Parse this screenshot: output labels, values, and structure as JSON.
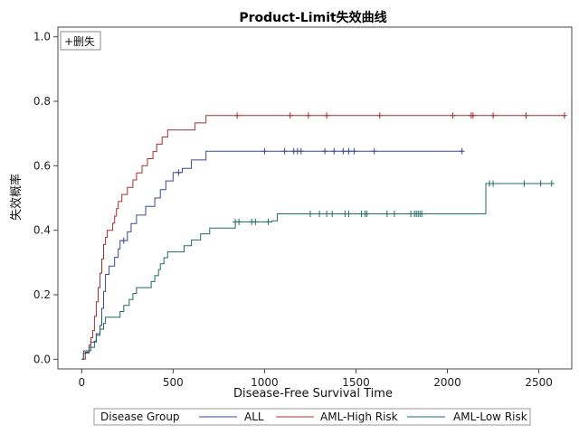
{
  "chart_data": {
    "type": "line",
    "title": "Product-Limit失效曲线",
    "xlabel": "Disease-Free Survival Time",
    "ylabel": "失效概率",
    "xlim": [
      -130,
      2680
    ],
    "ylim": [
      -0.03,
      1.03
    ],
    "xticks": [
      0,
      500,
      1000,
      1500,
      2000,
      2500
    ],
    "yticks": [
      0.0,
      0.2,
      0.4,
      0.6,
      0.8,
      1.0
    ],
    "xtick_labels": [
      "0",
      "500",
      "1000",
      "1500",
      "2000",
      "2500"
    ],
    "ytick_labels": [
      "0.0",
      "0.2",
      "0.4",
      "0.6",
      "0.8",
      "1.0"
    ],
    "inset_legend": {
      "symbol": "+",
      "label": "删失"
    },
    "legend": {
      "title": "Disease Group",
      "placement": "bottom"
    },
    "series": [
      {
        "name": "ALL",
        "color": "#3a4a8c",
        "steps": [
          [
            0,
            0.0
          ],
          [
            10,
            0.026
          ],
          [
            50,
            0.053
          ],
          [
            80,
            0.079
          ],
          [
            100,
            0.105
          ],
          [
            110,
            0.158
          ],
          [
            120,
            0.21
          ],
          [
            130,
            0.263
          ],
          [
            150,
            0.289
          ],
          [
            180,
            0.316
          ],
          [
            200,
            0.342
          ],
          [
            210,
            0.368
          ],
          [
            250,
            0.395
          ],
          [
            270,
            0.421
          ],
          [
            300,
            0.447
          ],
          [
            350,
            0.474
          ],
          [
            400,
            0.5
          ],
          [
            430,
            0.526
          ],
          [
            460,
            0.553
          ],
          [
            500,
            0.579
          ],
          [
            550,
            0.592
          ],
          [
            600,
            0.618
          ],
          [
            680,
            0.645
          ]
        ],
        "end": 2080,
        "censored": [
          230,
          530,
          1000,
          1110,
          1160,
          1180,
          1200,
          1330,
          1380,
          1430,
          1460,
          1490,
          1600,
          2080
        ]
      },
      {
        "name": "AML-High Risk",
        "color": "#a03030",
        "steps": [
          [
            0,
            0.0
          ],
          [
            20,
            0.022
          ],
          [
            40,
            0.044
          ],
          [
            50,
            0.067
          ],
          [
            60,
            0.089
          ],
          [
            70,
            0.133
          ],
          [
            80,
            0.178
          ],
          [
            90,
            0.222
          ],
          [
            100,
            0.267
          ],
          [
            110,
            0.311
          ],
          [
            120,
            0.356
          ],
          [
            130,
            0.378
          ],
          [
            140,
            0.4
          ],
          [
            170,
            0.422
          ],
          [
            180,
            0.444
          ],
          [
            190,
            0.467
          ],
          [
            200,
            0.489
          ],
          [
            220,
            0.511
          ],
          [
            250,
            0.533
          ],
          [
            280,
            0.556
          ],
          [
            300,
            0.578
          ],
          [
            330,
            0.6
          ],
          [
            360,
            0.622
          ],
          [
            390,
            0.644
          ],
          [
            410,
            0.667
          ],
          [
            440,
            0.689
          ],
          [
            470,
            0.711
          ],
          [
            620,
            0.733
          ],
          [
            680,
            0.756
          ]
        ],
        "end": 2640,
        "censored": [
          850,
          1140,
          1240,
          1340,
          1630,
          2030,
          2130,
          2140,
          2250,
          2430,
          2640
        ]
      },
      {
        "name": "AML-Low Risk",
        "color": "#1f6b66",
        "steps": [
          [
            0,
            0.0
          ],
          [
            10,
            0.019
          ],
          [
            40,
            0.037
          ],
          [
            70,
            0.056
          ],
          [
            80,
            0.074
          ],
          [
            100,
            0.093
          ],
          [
            120,
            0.111
          ],
          [
            130,
            0.13
          ],
          [
            210,
            0.148
          ],
          [
            230,
            0.167
          ],
          [
            260,
            0.185
          ],
          [
            280,
            0.204
          ],
          [
            300,
            0.222
          ],
          [
            380,
            0.241
          ],
          [
            400,
            0.259
          ],
          [
            420,
            0.278
          ],
          [
            430,
            0.296
          ],
          [
            450,
            0.315
          ],
          [
            470,
            0.333
          ],
          [
            560,
            0.352
          ],
          [
            600,
            0.37
          ],
          [
            650,
            0.389
          ],
          [
            700,
            0.407
          ],
          [
            840,
            0.426
          ],
          [
            1040,
            0.429
          ],
          [
            1070,
            0.451
          ],
          [
            2210,
            0.545
          ]
        ],
        "end": 2570,
        "censored": [
          840,
          860,
          930,
          950,
          1020,
          1250,
          1300,
          1340,
          1370,
          1440,
          1460,
          1530,
          1550,
          1560,
          1670,
          1710,
          1800,
          1820,
          1830,
          1840,
          1850,
          1860,
          2230,
          2250,
          2420,
          2510,
          2570
        ]
      }
    ]
  }
}
